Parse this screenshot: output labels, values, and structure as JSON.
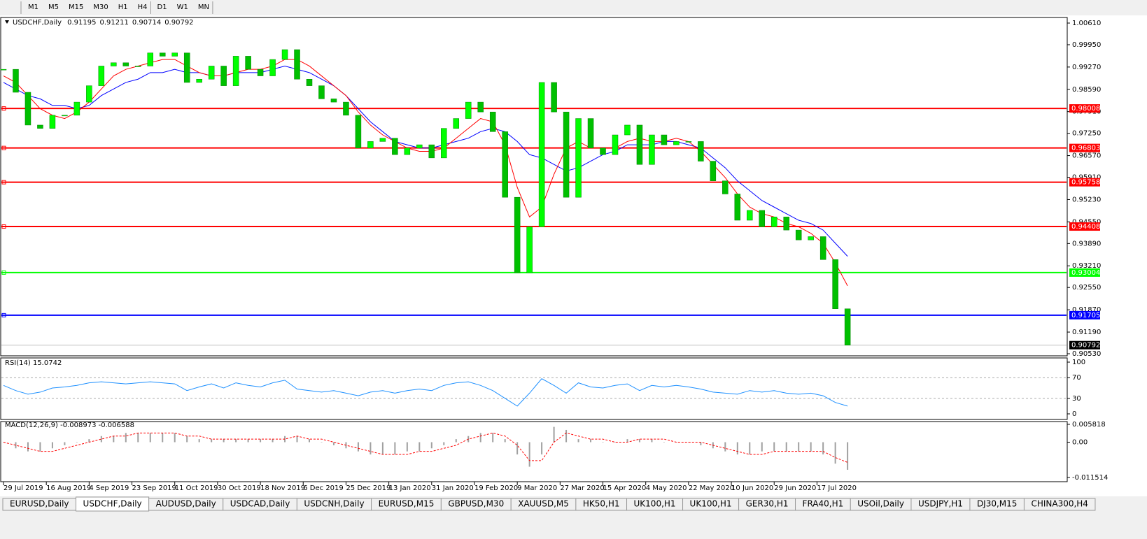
{
  "toolbar": {
    "timeframes": [
      "M1",
      "M5",
      "M15",
      "M30",
      "H1",
      "H4",
      "D1",
      "W1",
      "MN"
    ]
  },
  "tabs": [
    "EURUSD,Daily",
    "USDCHF,Daily",
    "AUDUSD,Daily",
    "USDCAD,Daily",
    "USDCNH,Daily",
    "EURUSD,M15",
    "GBPUSD,M30",
    "XAUUSD,M5",
    "HK50,H1",
    "UK100,H1",
    "UK100,H1",
    "GER30,H1",
    "FRA40,H1",
    "USOil,Daily",
    "USDJPY,H1",
    "DJ30,M15",
    "CHINA300,H4"
  ],
  "active_tab": 1,
  "chart_data": [
    {
      "type": "candlestick",
      "title": "USDCHF,Daily",
      "quote": [
        0.91195,
        0.91211,
        0.90714,
        0.90792
      ],
      "bull_color": "#00ff00",
      "bear_color": "#00c000",
      "x": [
        0,
        4,
        8,
        12,
        16,
        20,
        24,
        28,
        32,
        36,
        40,
        44,
        48,
        52,
        56,
        60,
        64,
        68,
        72,
        76,
        80,
        84,
        88,
        92,
        96,
        100,
        104,
        108,
        112,
        116,
        120,
        124,
        128,
        132,
        136,
        140,
        144,
        148,
        152,
        156,
        160,
        164,
        168,
        172,
        176,
        180,
        184,
        188,
        192,
        196,
        200,
        204,
        208,
        212,
        216,
        220,
        224,
        228,
        232,
        236,
        240,
        244,
        248,
        252,
        256,
        260,
        264,
        268,
        272,
        276
      ],
      "values": [
        0.992,
        0.985,
        0.975,
        0.974,
        0.978,
        0.978,
        0.982,
        0.987,
        0.993,
        0.994,
        0.993,
        0.993,
        0.997,
        0.996,
        0.997,
        0.988,
        0.989,
        0.993,
        0.987,
        0.996,
        0.992,
        0.99,
        0.995,
        0.998,
        0.989,
        0.987,
        0.983,
        0.982,
        0.978,
        0.968,
        0.97,
        0.971,
        0.966,
        0.968,
        0.969,
        0.965,
        0.974,
        0.977,
        0.982,
        0.979,
        0.973,
        0.953,
        0.93,
        0.944,
        0.988,
        0.979,
        0.953,
        0.977,
        0.968,
        0.966,
        0.972,
        0.975,
        0.963,
        0.972,
        0.969,
        0.97,
        0.97,
        0.964,
        0.958,
        0.954,
        0.946,
        0.949,
        0.944,
        0.947,
        0.943,
        0.94,
        0.941,
        0.934,
        0.919,
        0.90792
      ],
      "series": [
        {
          "color": "#0000ff",
          "values": [
            0.988,
            0.986,
            0.984,
            0.983,
            0.981,
            0.981,
            0.98,
            0.981,
            0.984,
            0.986,
            0.988,
            0.989,
            0.991,
            0.991,
            0.992,
            0.991,
            0.991,
            0.99,
            0.99,
            0.991,
            0.991,
            0.991,
            0.992,
            0.993,
            0.992,
            0.991,
            0.989,
            0.987,
            0.984,
            0.98,
            0.976,
            0.973,
            0.97,
            0.969,
            0.968,
            0.968,
            0.969,
            0.97,
            0.971,
            0.973,
            0.974,
            0.973,
            0.97,
            0.966,
            0.965,
            0.963,
            0.961,
            0.962,
            0.964,
            0.966,
            0.967,
            0.969,
            0.969,
            0.969,
            0.97,
            0.97,
            0.969,
            0.968,
            0.965,
            0.962,
            0.958,
            0.955,
            0.952,
            0.95,
            0.948,
            0.946,
            0.945,
            0.943,
            0.939,
            0.935
          ]
        },
        {
          "color": "#ff0000",
          "values": [
            0.99,
            0.988,
            0.984,
            0.98,
            0.978,
            0.977,
            0.979,
            0.982,
            0.986,
            0.99,
            0.992,
            0.993,
            0.994,
            0.995,
            0.995,
            0.993,
            0.991,
            0.99,
            0.99,
            0.991,
            0.992,
            0.992,
            0.993,
            0.995,
            0.995,
            0.993,
            0.99,
            0.987,
            0.984,
            0.979,
            0.975,
            0.972,
            0.97,
            0.968,
            0.967,
            0.967,
            0.968,
            0.971,
            0.974,
            0.977,
            0.976,
            0.969,
            0.956,
            0.947,
            0.95,
            0.96,
            0.968,
            0.97,
            0.968,
            0.968,
            0.968,
            0.97,
            0.971,
            0.97,
            0.97,
            0.971,
            0.97,
            0.967,
            0.963,
            0.959,
            0.954,
            0.95,
            0.948,
            0.947,
            0.945,
            0.944,
            0.942,
            0.939,
            0.933,
            0.926
          ]
        }
      ],
      "ylim": [
        0.9053,
        1.0061
      ],
      "yticks": [
        {
          "value": 1.0061,
          "label": "1.00610"
        },
        {
          "value": 0.9995,
          "label": "0.99950"
        },
        {
          "value": 0.9927,
          "label": "0.99270"
        },
        {
          "value": 0.9859,
          "label": "0.98590"
        },
        {
          "value": 0.9791,
          "label": "0.97910"
        },
        {
          "value": 0.9725,
          "label": "0.97250"
        },
        {
          "value": 0.9657,
          "label": "0.96570"
        },
        {
          "value": 0.9591,
          "label": "0.95910"
        },
        {
          "value": 0.9523,
          "label": "0.95230"
        },
        {
          "value": 0.9455,
          "label": "0.94550"
        },
        {
          "value": 0.9389,
          "label": "0.93890"
        },
        {
          "value": 0.9321,
          "label": "0.93210"
        },
        {
          "value": 0.9255,
          "label": "0.92550"
        },
        {
          "value": 0.9187,
          "label": "0.91870"
        },
        {
          "value": 0.9119,
          "label": "0.91190"
        },
        {
          "value": 0.9053,
          "label": "0.90530"
        }
      ],
      "levels": [
        {
          "value": 0.98008,
          "color": "#ff0000"
        },
        {
          "value": 0.96803,
          "color": "#ff0000"
        },
        {
          "value": 0.95758,
          "color": "#ff0000"
        },
        {
          "value": 0.94408,
          "color": "#ff0000"
        },
        {
          "value": 0.93004,
          "color": "#00ff00"
        },
        {
          "value": 0.91705,
          "color": "#0000ff"
        }
      ],
      "last_price": 0.90792,
      "xticks": [
        {
          "value": 0,
          "label": "29 Jul 2019"
        },
        {
          "value": 14,
          "label": "16 Aug 2019"
        },
        {
          "value": 28,
          "label": "4 Sep 2019"
        },
        {
          "value": 42,
          "label": "23 Sep 2019"
        },
        {
          "value": 56,
          "label": "11 Oct 2019"
        },
        {
          "value": 70,
          "label": "30 Oct 2019"
        },
        {
          "value": 84,
          "label": "18 Nov 2019"
        },
        {
          "value": 98,
          "label": "6 Dec 2019"
        },
        {
          "value": 112,
          "label": "25 Dec 2019"
        },
        {
          "value": 126,
          "label": "13 Jan 2020"
        },
        {
          "value": 140,
          "label": "31 Jan 2020"
        },
        {
          "value": 154,
          "label": "19 Feb 2020"
        },
        {
          "value": 168,
          "label": "9 Mar 2020"
        },
        {
          "value": 182,
          "label": "27 Mar 2020"
        },
        {
          "value": 196,
          "label": "15 Apr 2020"
        },
        {
          "value": 210,
          "label": "4 May 2020"
        },
        {
          "value": 224,
          "label": "22 May 2020"
        },
        {
          "value": 238,
          "label": "10 Jun 2020"
        },
        {
          "value": 252,
          "label": "29 Jun 2020"
        },
        {
          "value": 266,
          "label": "17 Jul 2020"
        }
      ]
    },
    {
      "type": "line",
      "title": "RSI(14) 15.0742",
      "color": "#1e90ff",
      "x": [
        0,
        4,
        8,
        12,
        16,
        20,
        24,
        28,
        32,
        36,
        40,
        44,
        48,
        52,
        56,
        60,
        64,
        68,
        72,
        76,
        80,
        84,
        88,
        92,
        96,
        100,
        104,
        108,
        112,
        116,
        120,
        124,
        128,
        132,
        136,
        140,
        144,
        148,
        152,
        156,
        160,
        164,
        168,
        172,
        176,
        180,
        184,
        188,
        192,
        196,
        200,
        204,
        208,
        212,
        216,
        220,
        224,
        228,
        232,
        236,
        240,
        244,
        248,
        252,
        256,
        260,
        264,
        268,
        272,
        276
      ],
      "values": [
        55,
        45,
        38,
        42,
        50,
        52,
        55,
        60,
        62,
        60,
        58,
        60,
        62,
        60,
        58,
        45,
        52,
        58,
        50,
        60,
        55,
        52,
        60,
        65,
        48,
        45,
        42,
        45,
        40,
        35,
        42,
        45,
        40,
        45,
        48,
        45,
        55,
        60,
        62,
        55,
        45,
        30,
        15,
        40,
        68,
        55,
        40,
        60,
        52,
        50,
        55,
        58,
        45,
        55,
        52,
        55,
        52,
        48,
        42,
        40,
        38,
        45,
        42,
        45,
        40,
        38,
        40,
        35,
        22,
        15
      ],
      "ylim": [
        0,
        100
      ],
      "yticks": [
        0,
        30,
        70,
        100
      ]
    },
    {
      "type": "macd",
      "title": "MACD(12,26,9) -0.008973 -0.006588",
      "color": "#a0a0a0",
      "signal_color": "#ff0000",
      "x": [
        0,
        4,
        8,
        12,
        16,
        20,
        24,
        28,
        32,
        36,
        40,
        44,
        48,
        52,
        56,
        60,
        64,
        68,
        72,
        76,
        80,
        84,
        88,
        92,
        96,
        100,
        104,
        108,
        112,
        116,
        120,
        124,
        128,
        132,
        136,
        140,
        144,
        148,
        152,
        156,
        160,
        164,
        168,
        172,
        176,
        180,
        184,
        188,
        192,
        196,
        200,
        204,
        208,
        212,
        216,
        220,
        224,
        228,
        232,
        236,
        240,
        244,
        248,
        252,
        256,
        260,
        264,
        268,
        272,
        276
      ],
      "values": [
        0,
        -0.002,
        -0.003,
        -0.003,
        -0.002,
        -0.001,
        0,
        0.001,
        0.002,
        0.002,
        0.003,
        0.003,
        0.003,
        0.003,
        0.003,
        0.002,
        0.001,
        0.001,
        0.001,
        0.001,
        0.001,
        0.001,
        0.001,
        0.002,
        0.002,
        0.001,
        0,
        -0.001,
        -0.002,
        -0.003,
        -0.004,
        -0.004,
        -0.004,
        -0.003,
        -0.003,
        -0.002,
        -0.001,
        0.001,
        0.002,
        0.003,
        0.003,
        0.001,
        -0.004,
        -0.008,
        -0.004,
        0.005,
        0.004,
        0.001,
        0.001,
        0,
        0,
        0.001,
        0.001,
        0.001,
        0,
        0,
        0,
        -0.001,
        -0.002,
        -0.003,
        -0.004,
        -0.004,
        -0.003,
        -0.003,
        -0.003,
        -0.003,
        -0.003,
        -0.004,
        -0.007,
        -0.009
      ],
      "signal": [
        0,
        -0.001,
        -0.002,
        -0.003,
        -0.003,
        -0.002,
        -0.001,
        0,
        0.001,
        0.002,
        0.002,
        0.003,
        0.003,
        0.003,
        0.003,
        0.002,
        0.002,
        0.001,
        0.001,
        0.001,
        0.001,
        0.001,
        0.001,
        0.001,
        0.002,
        0.001,
        0.001,
        0,
        -0.001,
        -0.002,
        -0.003,
        -0.004,
        -0.004,
        -0.004,
        -0.003,
        -0.003,
        -0.002,
        -0.001,
        0.001,
        0.002,
        0.003,
        0.002,
        -0.001,
        -0.006,
        -0.006,
        0,
        0.003,
        0.002,
        0.001,
        0.001,
        0,
        0,
        0.001,
        0.001,
        0.001,
        0,
        0,
        0,
        -0.001,
        -0.002,
        -0.003,
        -0.004,
        -0.004,
        -0.003,
        -0.003,
        -0.003,
        -0.003,
        -0.003,
        -0.005,
        -0.0066
      ],
      "ylim": [
        -0.011514,
        0.005818
      ],
      "yticks": [
        0.005818,
        {
          "value": 0,
          "label": "0.00"
        },
        -0.011514
      ]
    }
  ]
}
